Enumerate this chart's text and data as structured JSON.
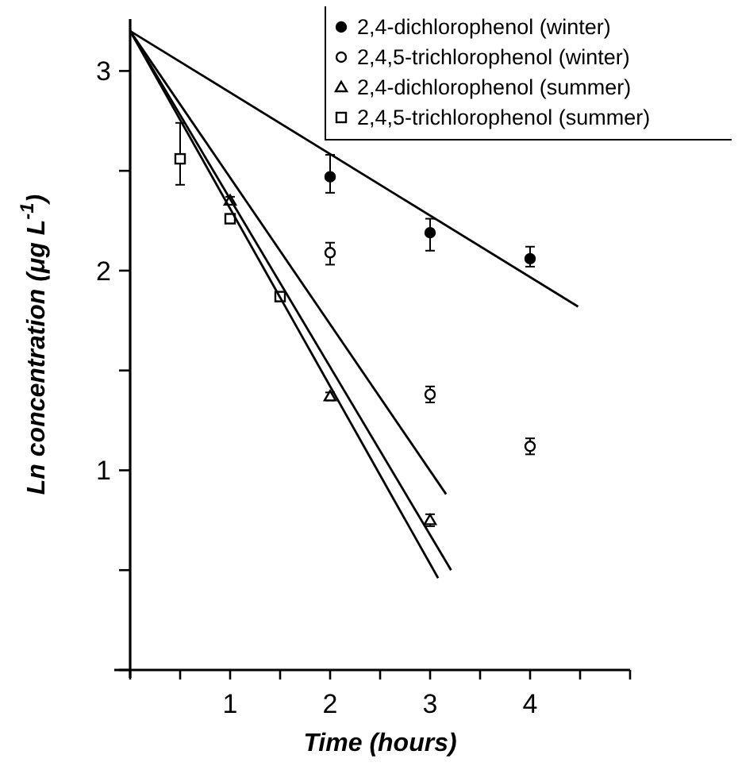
{
  "chart_data": {
    "type": "scatter",
    "xlabel": "Time (hours)",
    "ylabel": "Ln concentration (μg L$^{-1}$)",
    "xlim": [
      0,
      5
    ],
    "ylim": [
      0,
      3.26
    ],
    "xticks": [
      {
        "value": 0,
        "label": null
      },
      {
        "value": 0.5,
        "label": null
      },
      1,
      {
        "value": 1.5,
        "label": null
      },
      2,
      {
        "value": 2.5,
        "label": null
      },
      3,
      {
        "value": 3.5,
        "label": null
      },
      4,
      {
        "value": 4.5,
        "label": null
      },
      {
        "value": 5,
        "label": null
      }
    ],
    "yticks": [
      {
        "value": 0,
        "label": null
      },
      {
        "value": 0.5,
        "label": null
      },
      1,
      {
        "value": 1.5,
        "label": null
      },
      2,
      {
        "value": 2.5,
        "label": null
      },
      3
    ],
    "grid": false,
    "legend": "top right",
    "series": [
      {
        "name": "2,4-dichlorophenol (winter)",
        "marker": "circle",
        "color": "#000000",
        "x": [
          2,
          3,
          4
        ],
        "values": [
          2.47,
          2.19,
          2.06
        ],
        "errors": [
          [
            2.39,
            2.58
          ],
          [
            2.1,
            2.26
          ],
          [
            2.02,
            2.12
          ]
        ]
      },
      {
        "name": "2,4,5-trichlorophenol (winter)",
        "marker": "circle",
        "color": "#000000",
        "x": [
          2,
          3,
          4
        ],
        "values": [
          2.09,
          1.38,
          1.12
        ],
        "errors": [
          [
            2.03,
            2.14
          ],
          [
            1.34,
            1.42
          ],
          [
            1.08,
            1.16
          ]
        ]
      },
      {
        "name": "2,4-dichlorophenol (summer)",
        "marker": "triangle",
        "color": "#000000",
        "x": [
          1,
          2,
          3
        ],
        "values": [
          2.35,
          1.37,
          0.75
        ],
        "errors": [
          [
            2.33,
            2.37
          ],
          [
            1.35,
            1.39
          ],
          [
            0.72,
            0.78
          ]
        ]
      },
      {
        "name": "2,4,5-trichlorophenol (summer)",
        "marker": "square",
        "color": "#000000",
        "x": [
          0.5,
          1,
          1.5
        ],
        "values": [
          2.56,
          2.26,
          1.87
        ],
        "errors": [
          [
            2.43,
            2.74
          ],
          [
            2.24,
            2.28
          ],
          [
            1.85,
            1.89
          ]
        ]
      },
      {
        "type": "line",
        "color": "#000000",
        "x": [
          0,
          4.48
        ],
        "values": [
          3.2,
          1.82
        ]
      },
      {
        "type": "line",
        "color": "#000000",
        "x": [
          0,
          3.16
        ],
        "values": [
          3.2,
          0.88
        ]
      },
      {
        "type": "line",
        "color": "#000000",
        "x": [
          0,
          3.21
        ],
        "values": [
          3.2,
          0.5
        ]
      },
      {
        "type": "line",
        "color": "#000000",
        "x": [
          0,
          3.08
        ],
        "values": [
          3.2,
          0.46
        ]
      }
    ]
  }
}
